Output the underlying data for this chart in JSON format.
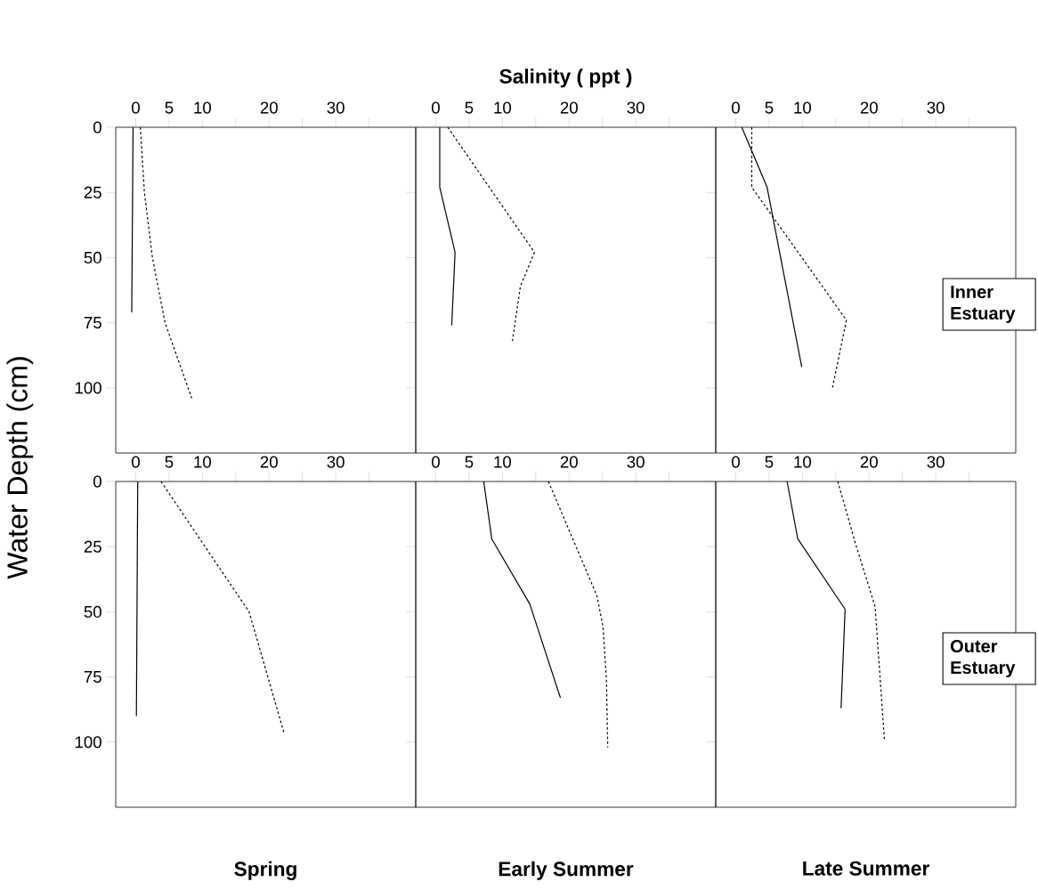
{
  "chart_data": [
    {
      "type": "line",
      "ylabel": "Water Depth (cm)",
      "xlim": [
        -3,
        42
      ],
      "ylim": [
        125,
        0
      ],
      "xticks": [
        0,
        5,
        10,
        {
          "value": 15,
          "label": null
        },
        20,
        {
          "value": 25,
          "label": null
        },
        30,
        {
          "value": 35,
          "label": null
        }
      ],
      "yticks": [
        0,
        25,
        50,
        75,
        100
      ],
      "series": [
        {
          "color": "#000000",
          "line_style": "solid",
          "x": [
            -0.4,
            -0.6
          ],
          "values": [
            0,
            71
          ]
        },
        {
          "color": "#000000",
          "line_style": "dashed",
          "x": [
            0.7,
            1.3,
            2.5,
            4.4,
            8.4
          ],
          "values": [
            0,
            25,
            50,
            75,
            104
          ]
        }
      ]
    },
    {
      "type": "line",
      "title": "Salinity   ( ppt )",
      "tick_labels": "x",
      "xlim": [
        -3,
        42
      ],
      "ylim": [
        125,
        0
      ],
      "xticks": [
        0,
        5,
        10,
        {
          "value": 15,
          "label": null
        },
        20,
        {
          "value": 25,
          "label": null
        },
        30,
        {
          "value": 35,
          "label": null
        }
      ],
      "yticks": [
        0,
        25,
        50,
        75,
        100
      ],
      "series": [
        {
          "color": "#000000",
          "line_style": "solid",
          "x": [
            0.6,
            0.6,
            2.9,
            2.4
          ],
          "values": [
            0,
            23,
            48,
            76
          ]
        },
        {
          "color": "#000000",
          "line_style": "dashed",
          "x": [
            1.8,
            14.8,
            12.7,
            11.5
          ],
          "values": [
            0,
            48,
            61,
            82
          ]
        }
      ]
    },
    {
      "type": "line",
      "tick_labels": "x",
      "annotations": [
        "Inner Estuary"
      ],
      "xlim": [
        -3,
        42
      ],
      "ylim": [
        125,
        0
      ],
      "xticks": [
        0,
        5,
        10,
        {
          "value": 15,
          "label": null
        },
        20,
        {
          "value": 25,
          "label": null
        },
        30,
        {
          "value": 35,
          "label": null
        }
      ],
      "yticks": [
        0,
        25,
        50,
        75,
        100
      ],
      "series": [
        {
          "color": "#000000",
          "line_style": "solid",
          "x": [
            0.9,
            4.7,
            9.9
          ],
          "values": [
            0,
            23,
            92
          ]
        },
        {
          "color": "#000000",
          "line_style": "dashed",
          "x": [
            2.4,
            2.4,
            16.6,
            14.5
          ],
          "values": [
            0,
            23,
            74,
            100
          ]
        }
      ]
    },
    {
      "type": "line",
      "xlabel": "Spring",
      "xlim": [
        -3,
        42
      ],
      "ylim": [
        125,
        0
      ],
      "xticks": [
        0,
        5,
        10,
        {
          "value": 15,
          "label": null
        },
        20,
        {
          "value": 25,
          "label": null
        },
        30,
        {
          "value": 35,
          "label": null
        }
      ],
      "yticks": [
        0,
        25,
        50,
        75,
        100
      ],
      "series": [
        {
          "color": "#000000",
          "line_style": "solid",
          "x": [
            0.3,
            0.1
          ],
          "values": [
            0,
            90
          ]
        },
        {
          "color": "#000000",
          "line_style": "dashed",
          "x": [
            3.8,
            17.0,
            22.3
          ],
          "values": [
            0,
            50,
            97
          ]
        }
      ]
    },
    {
      "type": "line",
      "xlabel": "Early Summer",
      "tick_labels": "x",
      "xlim": [
        -3,
        42
      ],
      "ylim": [
        125,
        0
      ],
      "xticks": [
        0,
        5,
        10,
        {
          "value": 15,
          "label": null
        },
        20,
        {
          "value": 25,
          "label": null
        },
        30,
        {
          "value": 35,
          "label": null
        }
      ],
      "yticks": [
        0,
        25,
        50,
        75,
        100
      ],
      "series": [
        {
          "color": "#000000",
          "line_style": "solid",
          "x": [
            7.2,
            8.4,
            14.1,
            18.7
          ],
          "values": [
            0,
            22,
            47,
            83
          ]
        },
        {
          "color": "#000000",
          "line_style": "dashed",
          "x": [
            16.9,
            24.2,
            25.1,
            25.6,
            25.8
          ],
          "values": [
            0,
            44,
            56,
            76,
            102
          ]
        }
      ]
    },
    {
      "type": "line",
      "xlabel": "Late Summer",
      "tick_labels": "x",
      "annotations": [
        "Outer Estuary"
      ],
      "xlim": [
        -3,
        42
      ],
      "ylim": [
        125,
        0
      ],
      "xticks": [
        0,
        5,
        10,
        {
          "value": 15,
          "label": null
        },
        20,
        {
          "value": 25,
          "label": null
        },
        30,
        {
          "value": 35,
          "label": null
        }
      ],
      "yticks": [
        0,
        25,
        50,
        75,
        100
      ],
      "series": [
        {
          "color": "#000000",
          "line_style": "solid",
          "x": [
            7.7,
            9.3,
            16.4,
            15.8
          ],
          "values": [
            0,
            22,
            49,
            87
          ]
        },
        {
          "color": "#000000",
          "line_style": "dashed",
          "x": [
            15.3,
            18.1,
            20.9,
            22.3
          ],
          "values": [
            0,
            25,
            48,
            99
          ]
        }
      ]
    }
  ]
}
